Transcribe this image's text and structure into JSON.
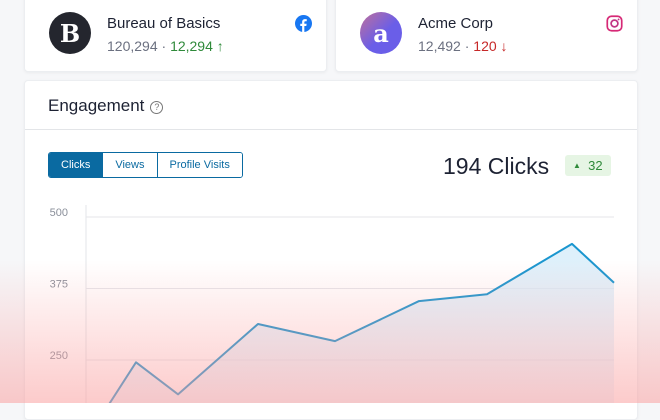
{
  "accounts": [
    {
      "name": "Bureau of Basics",
      "total": "120,294",
      "change": "12,294",
      "direction": "up",
      "network": "facebook-icon",
      "avatar_letter": "B"
    },
    {
      "name": "Acme Corp",
      "total": "12,492",
      "change": "120",
      "direction": "down",
      "network": "instagram-icon",
      "avatar_letter": "a"
    }
  ],
  "engagement": {
    "title": "Engagement",
    "tabs": [
      {
        "label": "Clicks",
        "active": true
      },
      {
        "label": "Views",
        "active": false
      },
      {
        "label": "Profile Visits",
        "active": false
      }
    ],
    "total": "194 Clicks",
    "delta": "32",
    "accent": "#0a6aa1"
  },
  "chart_data": {
    "type": "area",
    "y_ticks": [
      "500",
      "375",
      "250"
    ],
    "ylim_visible": [
      175,
      500
    ],
    "values": [
      110,
      246,
      190,
      313,
      283,
      353,
      365,
      453,
      385
    ],
    "line_color": "#1a96cf"
  }
}
